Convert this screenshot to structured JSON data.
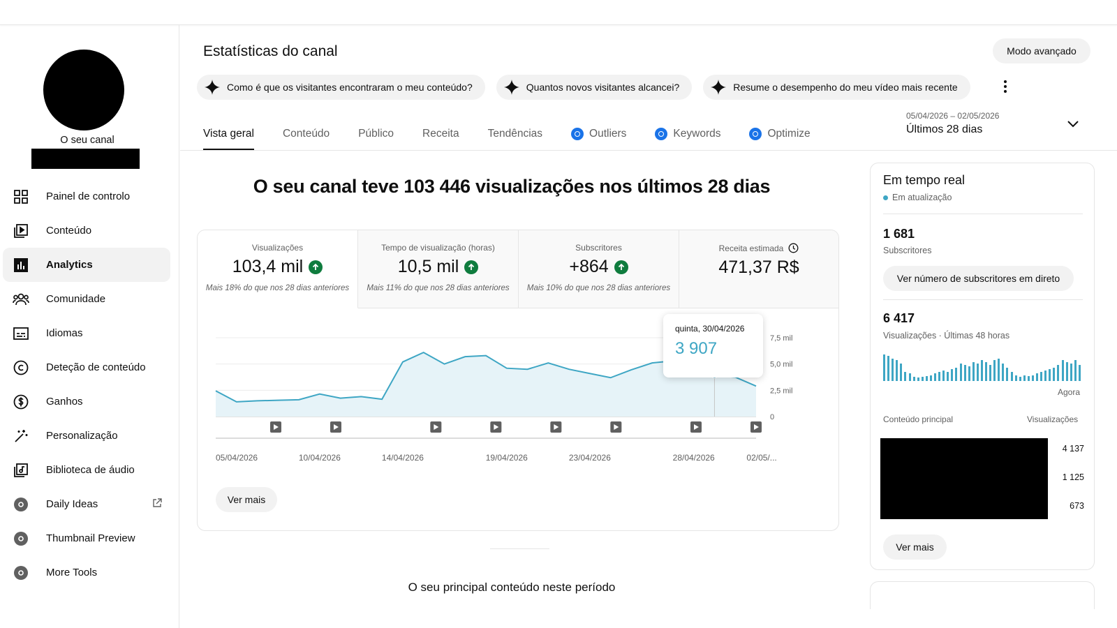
{
  "sidebar": {
    "channel_label": "O seu canal",
    "items": [
      {
        "label": "Painel de controlo",
        "icon": "dashboard-icon"
      },
      {
        "label": "Conteúdo",
        "icon": "content-icon"
      },
      {
        "label": "Analytics",
        "icon": "analytics-icon",
        "active": true
      },
      {
        "label": "Comunidade",
        "icon": "community-icon"
      },
      {
        "label": "Idiomas",
        "icon": "subtitles-icon"
      },
      {
        "label": "Deteção de conteúdo",
        "icon": "copyright-icon"
      },
      {
        "label": "Ganhos",
        "icon": "dollar-icon"
      },
      {
        "label": "Personalização",
        "icon": "magic-wand-icon"
      },
      {
        "label": "Biblioteca de áudio",
        "icon": "audio-library-icon"
      },
      {
        "label": "Daily Ideas",
        "icon": "vidiq-icon"
      },
      {
        "label": "Thumbnail Preview",
        "icon": "vidiq-icon"
      },
      {
        "label": "More Tools",
        "icon": "vidiq-icon"
      }
    ]
  },
  "header": {
    "title": "Estatísticas do canal",
    "advanced_mode": "Modo avançado"
  },
  "chips": [
    "Como é que os visitantes encontraram o meu conteúdo?",
    "Quantos novos visitantes alcancei?",
    "Resume o desempenho do meu vídeo mais recente"
  ],
  "tabs": [
    {
      "label": "Vista geral",
      "active": true
    },
    {
      "label": "Conteúdo"
    },
    {
      "label": "Público"
    },
    {
      "label": "Receita"
    },
    {
      "label": "Tendências"
    },
    {
      "label": "Outliers",
      "icon": "vidiq-icon"
    },
    {
      "label": "Keywords",
      "icon": "vidiq-icon"
    },
    {
      "label": "Optimize",
      "icon": "vidiq-icon"
    }
  ],
  "date_range": {
    "dates": "05/04/2026 – 02/05/2026",
    "label": "Últimos 28 dias"
  },
  "headline": "O seu canal teve 103 446 visualizações nos últimos 28 dias",
  "metrics": [
    {
      "label": "Visualizações",
      "value": "103,4 mil",
      "trend": "up",
      "sub": "Mais 18% do que nos 28 dias anteriores"
    },
    {
      "label": "Tempo de visualização (horas)",
      "value": "10,5 mil",
      "trend": "up",
      "sub": "Mais 11% do que nos 28 dias anteriores"
    },
    {
      "label": "Subscritores",
      "value": "+864",
      "trend": "up",
      "sub": "Mais 10% do que nos 28 dias anteriores"
    },
    {
      "label": "Receita estimada",
      "value": "471,37 R$",
      "trend": null,
      "sub": ""
    }
  ],
  "chart_data": {
    "type": "area",
    "x_tick_labels": [
      "05/04/2026",
      "10/04/2026",
      "14/04/2026",
      "19/04/2026",
      "23/04/2026",
      "28/04/2026",
      "02/05/..."
    ],
    "y_tick_labels": [
      "0",
      "2,5 mil",
      "5,0 mil",
      "7,5 mil"
    ],
    "ylim": [
      0,
      7500
    ],
    "series": [
      {
        "values": [
          2450,
          1400,
          1500,
          1550,
          1600,
          2150,
          1750,
          1900,
          1650,
          5200,
          6100,
          5000,
          5700,
          5800,
          4600,
          4500,
          5100,
          4500,
          4100,
          3700,
          4450,
          5100,
          5300,
          4900,
          3907,
          3750,
          2900
        ]
      }
    ],
    "tooltip": {
      "date": "quinta, 30/04/2026",
      "value": "3 907"
    },
    "color": "#3ea6c4"
  },
  "see_more": "Ver mais",
  "section_title": "O seu principal conteúdo neste período",
  "realtime": {
    "title": "Em tempo real",
    "live": "Em atualização",
    "subs_value": "1 681",
    "subs_label": "Subscritores",
    "subs_button": "Ver número de subscritores em direto",
    "views_value": "6 417",
    "views_label": "Visualizações · Últimas 48 horas",
    "now_label": "Agora",
    "col_content": "Conteúdo principal",
    "col_views": "Visualizações",
    "top_values": [
      "4 137",
      "1 125",
      "673"
    ],
    "see_more": "Ver mais",
    "hourly_views": [
      36,
      34,
      30,
      28,
      24,
      12,
      10,
      6,
      5,
      6,
      7,
      8,
      10,
      12,
      14,
      12,
      16,
      18,
      24,
      22,
      20,
      26,
      24,
      28,
      26,
      22,
      28,
      30,
      24,
      18,
      12,
      8,
      6,
      8,
      7,
      8,
      10,
      12,
      14,
      16,
      18,
      22,
      28,
      26,
      24,
      28,
      22
    ]
  }
}
